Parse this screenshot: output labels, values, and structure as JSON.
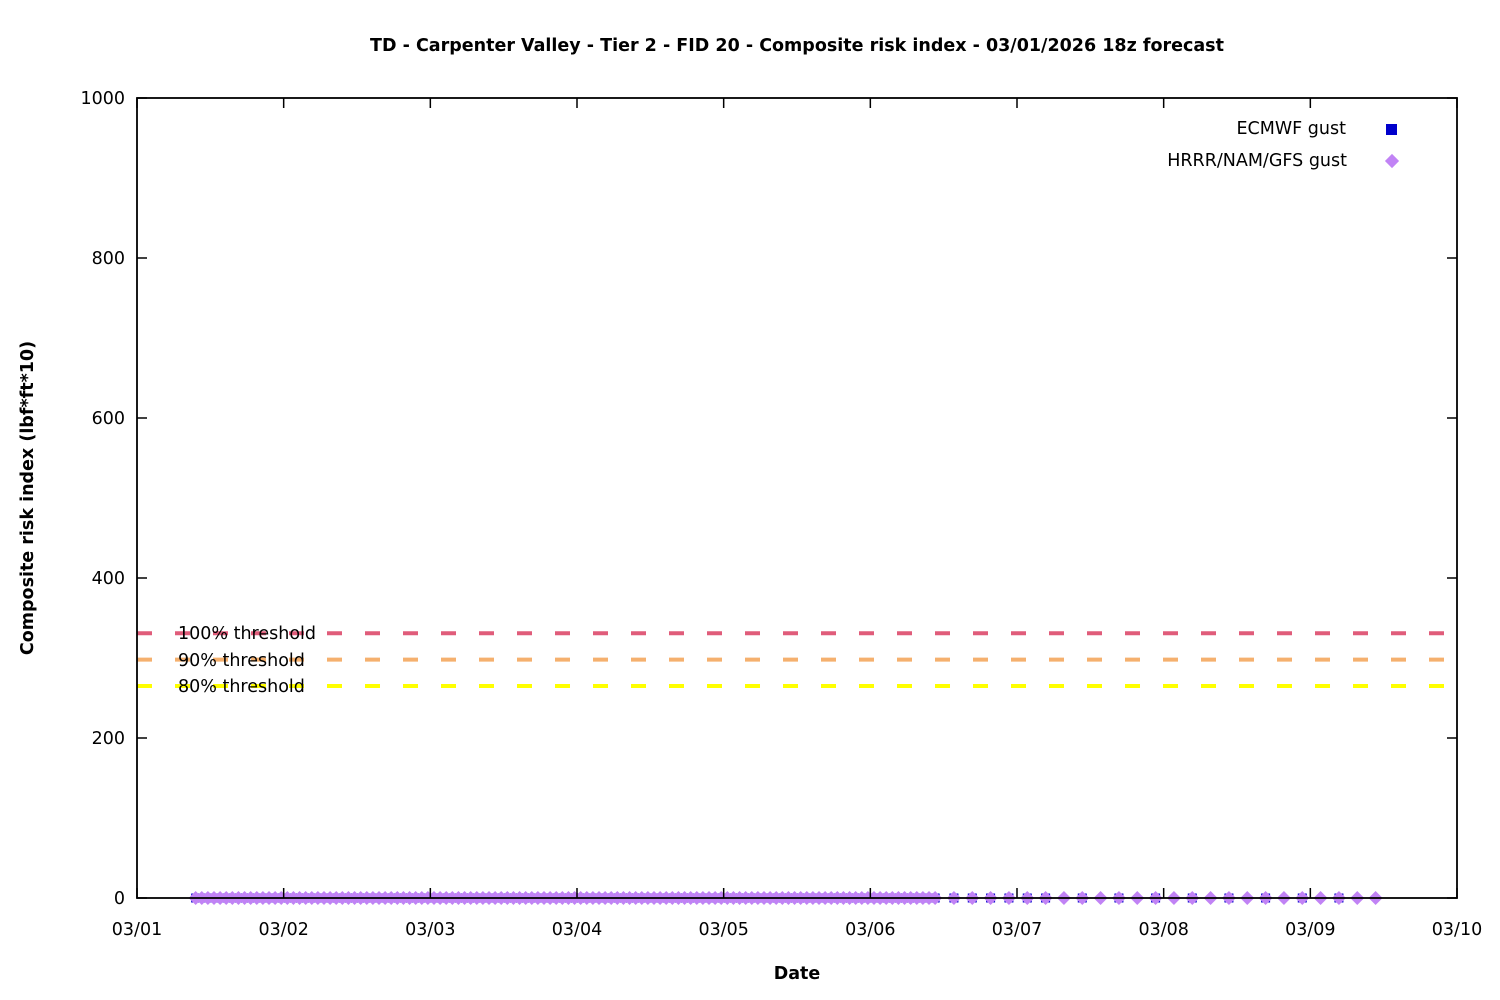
{
  "chart_data": {
    "type": "scatter",
    "title": "TD - Carpenter Valley - Tier 2 - FID 20 - Composite risk index - 03/01/2026 18z forecast",
    "xlabel": "Date",
    "ylabel": "Composite risk index (lbf*ft*10)",
    "x_axis": {
      "tick_labels": [
        "03/01",
        "03/02",
        "03/03",
        "03/04",
        "03/05",
        "03/06",
        "03/07",
        "03/08",
        "03/09",
        "03/10"
      ],
      "range_days": [
        0,
        9
      ]
    },
    "y_axis": {
      "ticks": [
        0,
        200,
        400,
        600,
        800,
        1000
      ],
      "range": [
        0,
        1000
      ]
    },
    "grid": false,
    "legend_position": "top-right-inside",
    "legend": [
      {
        "label": "ECMWF gust",
        "marker": "square",
        "color": "#0000cc"
      },
      {
        "label": "HRRR/NAM/GFS gust",
        "marker": "diamond",
        "color": "#c183f5"
      }
    ],
    "thresholds": [
      {
        "label": "100% threshold",
        "value": 331,
        "color": "#e05c7a"
      },
      {
        "label": "90% threshold",
        "value": 298,
        "color": "#f5b06e"
      },
      {
        "label": "80% threshold",
        "value": 265,
        "color": "#ffff00"
      }
    ],
    "series": [
      {
        "name": "ECMWF gust",
        "marker": "square",
        "color": "#0000cc",
        "value": 0,
        "segments": [
          {
            "start_day": 0.4,
            "end_day": 5.46,
            "step_hours": 1
          },
          {
            "start_day": 5.57,
            "end_day": 6.2,
            "step_hours": 3
          },
          {
            "start_day": 6.445,
            "end_day": 8.2,
            "step_hours": 6
          }
        ]
      },
      {
        "name": "HRRR/NAM/GFS gust",
        "marker": "diamond",
        "color": "#c183f5",
        "value": 0,
        "segments": [
          {
            "start_day": 0.4,
            "end_day": 5.46,
            "step_hours": 1
          },
          {
            "start_day": 5.57,
            "end_day": 8.45,
            "step_hours": 3
          }
        ]
      }
    ]
  }
}
